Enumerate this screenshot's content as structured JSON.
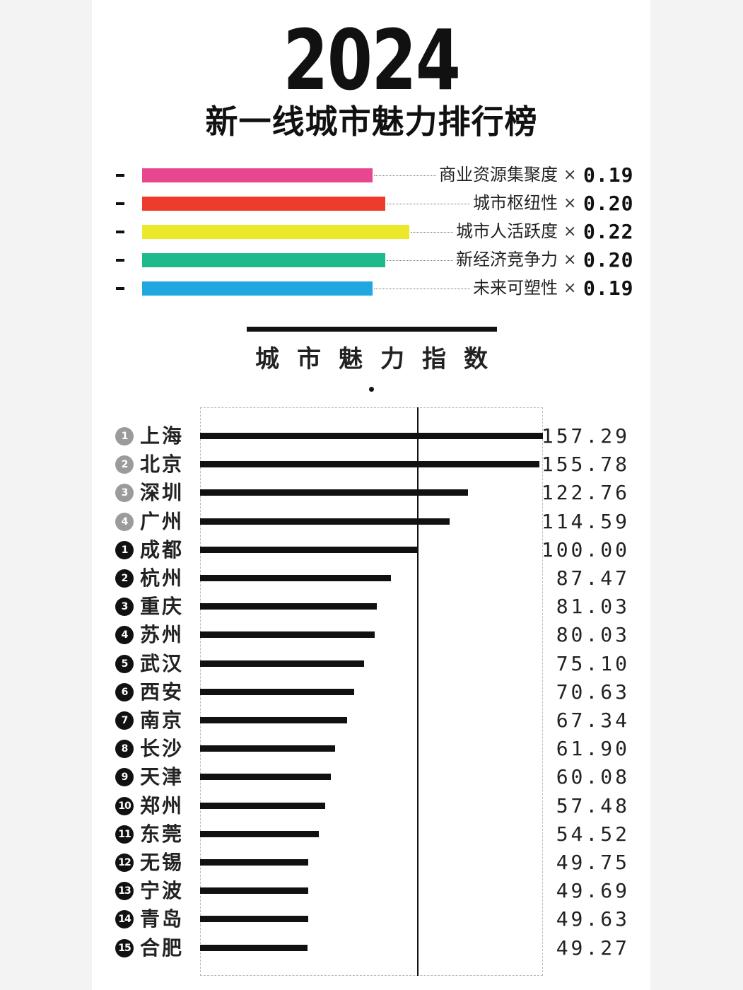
{
  "title": "2024",
  "subtitle": "新一线城市魅力排行榜",
  "weights": [
    {
      "label": "商业资源集聚度",
      "multiplier": "×",
      "weight": "0.19",
      "value": 0.19,
      "color": "#e8468f"
    },
    {
      "label": "城市枢纽性",
      "multiplier": "×",
      "weight": "0.20",
      "value": 0.2,
      "color": "#ef3b2c"
    },
    {
      "label": "城市人活跃度",
      "multiplier": "×",
      "weight": "0.22",
      "value": 0.22,
      "color": "#ece82a"
    },
    {
      "label": "新经济竞争力",
      "multiplier": "×",
      "weight": "0.20",
      "value": 0.2,
      "color": "#1fba8c"
    },
    {
      "label": "未来可塑性",
      "multiplier": "×",
      "weight": "0.19",
      "value": 0.19,
      "color": "#20a7e0"
    }
  ],
  "section_title": "城市魅力指数",
  "chart_data": {
    "type": "bar",
    "orientation": "horizontal",
    "title": "城市魅力指数",
    "reference_value": 100,
    "xlim": [
      0,
      157.29
    ],
    "categories": [
      "上海",
      "北京",
      "深圳",
      "广州",
      "成都",
      "杭州",
      "重庆",
      "苏州",
      "武汉",
      "西安",
      "南京",
      "长沙",
      "天津",
      "郑州",
      "东莞",
      "无锡",
      "宁波",
      "青岛",
      "合肥"
    ],
    "ranks": [
      "1",
      "2",
      "3",
      "4",
      "1",
      "2",
      "3",
      "4",
      "5",
      "6",
      "7",
      "8",
      "9",
      "10",
      "11",
      "12",
      "13",
      "14",
      "15"
    ],
    "rank_style": [
      "grey",
      "grey",
      "grey",
      "grey",
      "black",
      "black",
      "black",
      "black",
      "black",
      "black",
      "black",
      "black",
      "black",
      "black",
      "black",
      "black",
      "black",
      "black",
      "black"
    ],
    "values": [
      157.29,
      155.78,
      122.76,
      114.59,
      100.0,
      87.47,
      81.03,
      80.03,
      75.1,
      70.63,
      67.34,
      61.9,
      60.08,
      57.48,
      54.52,
      49.75,
      49.69,
      49.63,
      49.27
    ],
    "labels": [
      "157.29",
      "155.78",
      "122.76",
      "114.59",
      "100.00",
      "87.47",
      "81.03",
      "80.03",
      "75.10",
      "70.63",
      "67.34",
      "61.90",
      "60.08",
      "57.48",
      "54.52",
      "49.75",
      "49.69",
      "49.63",
      "49.27"
    ],
    "bar_color": "#111111"
  }
}
